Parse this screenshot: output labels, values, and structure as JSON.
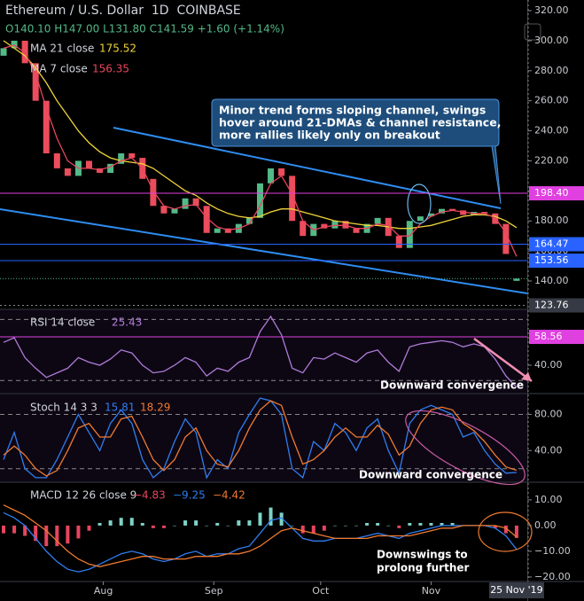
{
  "chart_data": [
    {
      "type": "candlestick",
      "title": "Ethereum / U.S. Dollar  1D  COINBASE",
      "ohlc_header": "O140.10 H147.00 L131.80 C141.59 +1.60 (+1.14%)",
      "x": [
        3,
        6,
        9,
        12,
        15,
        18,
        21,
        24,
        27,
        30,
        33,
        36,
        39,
        42,
        45,
        48,
        51,
        54,
        57,
        60,
        63,
        66,
        69,
        72,
        75,
        78,
        81,
        84,
        87,
        90,
        93,
        96,
        99,
        102,
        105,
        108,
        111,
        114,
        117,
        120,
        123,
        126,
        129,
        132,
        135,
        138,
        141,
        144,
        147
      ],
      "open": [
        290,
        295,
        300,
        285,
        260,
        225,
        215,
        210,
        220,
        215,
        212,
        218,
        225,
        222,
        208,
        190,
        185,
        188,
        195,
        190,
        172,
        175,
        172,
        178,
        182,
        205,
        215,
        210,
        180,
        170,
        178,
        175,
        180,
        175,
        172,
        178,
        182,
        170,
        162,
        180,
        183,
        185,
        188,
        187,
        184,
        186,
        185,
        178,
        140.1
      ],
      "close": [
        295,
        300,
        285,
        260,
        225,
        215,
        210,
        220,
        215,
        212,
        218,
        225,
        222,
        208,
        190,
        185,
        188,
        195,
        190,
        172,
        175,
        172,
        178,
        182,
        205,
        215,
        210,
        180,
        170,
        178,
        175,
        180,
        175,
        172,
        178,
        182,
        170,
        162,
        180,
        183,
        185,
        188,
        187,
        184,
        186,
        185,
        178,
        158,
        141.59
      ],
      "up_color": "#53b987",
      "down_color": "#eb4d5c",
      "series": [
        {
          "name": "MA 21 close",
          "color": "#f0d43a",
          "values": [
            300,
            295,
            290,
            282,
            272,
            260,
            250,
            240,
            232,
            226,
            222,
            220,
            219,
            218,
            215,
            210,
            205,
            200,
            197,
            192,
            188,
            185,
            183,
            182,
            183,
            186,
            188,
            188,
            186,
            184,
            182,
            180,
            179,
            178,
            177,
            177,
            176,
            175,
            175,
            176,
            177,
            179,
            181,
            183,
            184,
            184,
            183,
            180,
            175.52
          ]
        },
        {
          "name": "MA 7 close",
          "color": "#e8455e",
          "values": [
            295,
            297,
            292,
            278,
            255,
            235,
            220,
            215,
            215,
            214,
            216,
            220,
            222,
            215,
            200,
            190,
            188,
            190,
            191,
            182,
            176,
            174,
            175,
            178,
            190,
            205,
            210,
            198,
            180,
            174,
            176,
            177,
            177,
            175,
            175,
            178,
            177,
            170,
            170,
            178,
            183,
            186,
            187,
            186,
            185,
            185,
            182,
            172,
            156.35
          ]
        }
      ],
      "levels": [
        {
          "value": 198.4,
          "label": "198.40",
          "color": "#e040e0"
        },
        {
          "value": 164.47,
          "label": "164.47",
          "color": "#2962ff"
        },
        {
          "value": 153.56,
          "label": "153.56",
          "color": "#2962ff"
        },
        {
          "value": 123.76,
          "label": "123.76",
          "color": "#363a45"
        }
      ],
      "ylim": [
        121.7,
        327.1
      ],
      "yticks": [
        {
          "value": 140,
          "label": "140.00"
        },
        {
          "value": 160,
          "label": "160.00"
        },
        {
          "value": 180,
          "label": "180.00"
        },
        {
          "value": 200,
          "label": "200.00"
        },
        {
          "value": 220,
          "label": "220.00"
        },
        {
          "value": 240,
          "label": "240.00"
        },
        {
          "value": 260,
          "label": "260.00"
        },
        {
          "value": 280,
          "label": "280.00"
        },
        {
          "value": 300,
          "label": "300.00"
        },
        {
          "value": 320,
          "label": "320.00"
        }
      ],
      "xlim": [
        2,
        150
      ],
      "xticks": [
        {
          "value": 31,
          "label": "Aug"
        },
        {
          "value": 62,
          "label": "Sep"
        },
        {
          "value": 92,
          "label": "Oct"
        },
        {
          "value": 123,
          "label": "Nov"
        }
      ],
      "cursor_x": {
        "value": 147,
        "label": "25 Nov '19"
      },
      "annotation": [
        "Minor trend forms sloping channel, swings",
        "hover around 21-DMAs & channel resistance,",
        "more rallies likely only on breakout"
      ]
    },
    {
      "type": "line",
      "title": "RSI 14 close",
      "series": [
        {
          "color": "#b07cd8",
          "values": [
            55,
            58,
            45,
            38,
            32,
            35,
            38,
            45,
            42,
            40,
            44,
            50,
            48,
            40,
            35,
            36,
            40,
            45,
            42,
            33,
            38,
            36,
            42,
            45,
            62,
            72,
            60,
            38,
            35,
            45,
            44,
            48,
            45,
            42,
            48,
            50,
            42,
            36,
            52,
            54,
            55,
            56,
            55,
            52,
            54,
            52,
            44,
            33,
            25.43
          ]
        }
      ],
      "bands": [
        30,
        70
      ],
      "levels": [
        {
          "value": 58.56,
          "label": "58.56",
          "color": "#e040e0"
        }
      ],
      "ylim": [
        22,
        76
      ],
      "yticks": [
        {
          "value": 40,
          "label": "40.00"
        }
      ],
      "annotation": "Downward convergence"
    },
    {
      "type": "line",
      "title": "Stoch 14 3 3",
      "series": [
        {
          "color": "#2f7ef0",
          "values": [
            30,
            60,
            20,
            10,
            10,
            30,
            55,
            80,
            60,
            40,
            70,
            85,
            70,
            30,
            10,
            20,
            50,
            75,
            60,
            10,
            30,
            20,
            60,
            80,
            98,
            95,
            80,
            20,
            10,
            50,
            40,
            70,
            60,
            40,
            65,
            75,
            40,
            15,
            70,
            85,
            90,
            85,
            80,
            55,
            60,
            40,
            25,
            15,
            15.81
          ]
        },
        {
          "color": "#f07a2f",
          "values": [
            35,
            45,
            35,
            20,
            12,
            18,
            40,
            65,
            70,
            55,
            55,
            75,
            78,
            55,
            30,
            18,
            30,
            55,
            65,
            40,
            25,
            22,
            40,
            65,
            85,
            95,
            90,
            55,
            25,
            30,
            40,
            55,
            65,
            55,
            55,
            68,
            58,
            35,
            45,
            70,
            85,
            88,
            85,
            70,
            62,
            50,
            35,
            22,
            18.29
          ]
        }
      ],
      "bands": [
        20,
        80
      ],
      "ylim": [
        6,
        102
      ],
      "yticks": [
        {
          "value": 40,
          "label": "40.00"
        },
        {
          "value": 80,
          "label": "80.00"
        }
      ],
      "annotation": "Downward convergence"
    },
    {
      "type": "line",
      "title": "MACD 12 26 close 9",
      "legend_values": [
        "−4.83",
        "−9.25",
        "−4.42"
      ],
      "series": [
        {
          "type": "bar",
          "color": "#e8455e",
          "up_color": "#7fd3c8",
          "values": [
            -3,
            -3,
            -4,
            -6,
            -8,
            -8,
            -7,
            -5,
            -2,
            1,
            2,
            3,
            3,
            1,
            -1,
            -1,
            0,
            2,
            2,
            0,
            1,
            0,
            2,
            2,
            5,
            7,
            5,
            0,
            -3,
            -3,
            -2,
            0,
            0,
            0,
            1,
            1,
            0,
            -1,
            1,
            1,
            1,
            1,
            1,
            0,
            0,
            0,
            -1,
            -3,
            -4.83
          ]
        },
        {
          "color": "#2f7ef0",
          "values": [
            5,
            3,
            0,
            -5,
            -10,
            -14,
            -17,
            -18,
            -17,
            -15,
            -13,
            -11,
            -10,
            -11,
            -13,
            -14,
            -13,
            -11,
            -10,
            -12,
            -11,
            -11,
            -9,
            -8,
            -3,
            2,
            3,
            -1,
            -5,
            -6,
            -6,
            -5,
            -5,
            -5,
            -4,
            -3,
            -4,
            -5,
            -3,
            -2,
            -1,
            0,
            0,
            0,
            0,
            0,
            -1,
            -4,
            -9.25
          ]
        },
        {
          "color": "#f07a2f",
          "values": [
            8,
            6,
            4,
            1,
            -2,
            -6,
            -10,
            -13,
            -15,
            -16,
            -15,
            -14,
            -13,
            -12,
            -12,
            -13,
            -13,
            -13,
            -12,
            -12,
            -12,
            -11,
            -11,
            -10,
            -8,
            -5,
            -2,
            -1,
            -2,
            -3,
            -4,
            -5,
            -5,
            -5,
            -5,
            -4,
            -4,
            -4,
            -4,
            -3,
            -2,
            -1,
            -1,
            0,
            0,
            0,
            0,
            -1,
            -4.42
          ]
        }
      ],
      "ylim": [
        -21.4,
        16.5
      ],
      "yticks": [
        {
          "value": -20,
          "label": "−20.00"
        },
        {
          "value": -10,
          "label": "−10.00"
        },
        {
          "value": 0,
          "label": "0.00"
        },
        {
          "value": 10,
          "label": "10.00"
        }
      ],
      "annotation": [
        "Downswings to",
        "prolong further"
      ]
    }
  ]
}
